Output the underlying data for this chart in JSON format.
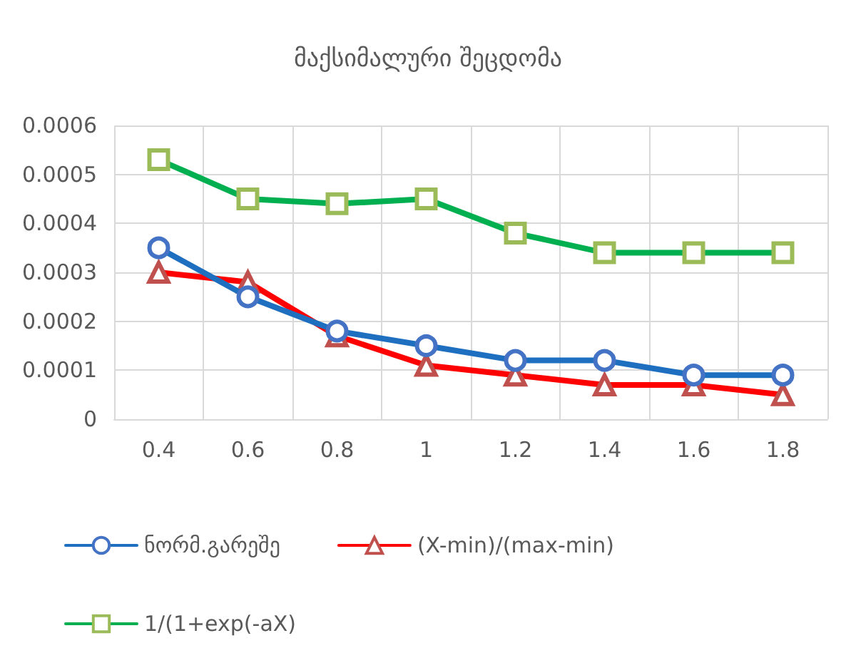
{
  "chart_data": {
    "type": "line",
    "title": "მაქსიმალური შეცდომა",
    "categories": [
      "0.4",
      "0.6",
      "0.8",
      "1",
      "1.2",
      "1.4",
      "1.6",
      "1.8"
    ],
    "series": [
      {
        "name": "ნორმ.გარეშე",
        "color": "#1f6fc0",
        "marker": "circle",
        "values": [
          0.00035,
          0.00025,
          0.00018,
          0.00015,
          0.00012,
          0.00012,
          9e-05,
          9e-05
        ]
      },
      {
        "name": "(X-min)/(max-min)",
        "color": "#ff0000",
        "marker": "triangle",
        "values": [
          0.0003,
          0.00028,
          0.00017,
          0.00011,
          9e-05,
          7e-05,
          7e-05,
          5e-05
        ]
      },
      {
        "name": "1/(1+exp(-aX)",
        "color": "#00b050",
        "marker": "square",
        "values": [
          0.00053,
          0.00045,
          0.00044,
          0.00045,
          0.00038,
          0.00034,
          0.00034,
          0.00034
        ]
      }
    ],
    "ylim": [
      0,
      0.0006
    ],
    "yticks": [
      0,
      0.0001,
      0.0002,
      0.0003,
      0.0004,
      0.0005,
      0.0006
    ],
    "grid": true,
    "legend": "bottom",
    "line_style": "solid"
  }
}
